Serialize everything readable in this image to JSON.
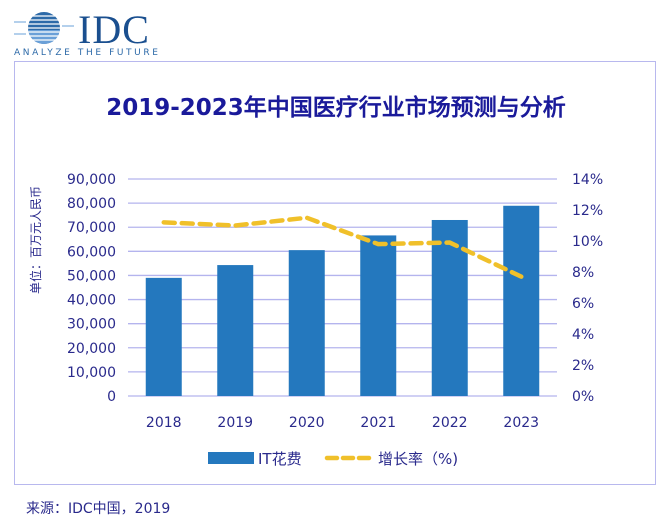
{
  "logo": {
    "word": "IDC",
    "tagline": "ANALYZE THE FUTURE"
  },
  "chart_data": {
    "type": "bar+line",
    "title": "2019-2023年中国医疗行业市场预测与分析",
    "categories": [
      "2018",
      "2019",
      "2020",
      "2021",
      "2022",
      "2023"
    ],
    "ylabel": "单位：百万元人民币",
    "ylim": [
      0,
      90000
    ],
    "yticks": [
      "0",
      "10,000",
      "20,000",
      "30,000",
      "40,000",
      "50,000",
      "60,000",
      "70,000",
      "80,000",
      "90,000"
    ],
    "y2lim": [
      0,
      14
    ],
    "y2ticks": [
      "0%",
      "2%",
      "4%",
      "6%",
      "8%",
      "10%",
      "12%",
      "14%"
    ],
    "grid": true,
    "legend_placement": "bottom",
    "series": [
      {
        "name": "IT花费",
        "type": "bar",
        "axis": "left",
        "color": "#2478be",
        "values": [
          49000,
          54300,
          60500,
          66600,
          73000,
          78900
        ]
      },
      {
        "name": "增长率（%)",
        "type": "line",
        "style": "dashed",
        "axis": "right",
        "color": "#f0c02a",
        "values": [
          11.2,
          11.0,
          11.5,
          9.8,
          9.9,
          7.7
        ]
      }
    ]
  },
  "source": "来源：IDC中国，2019"
}
